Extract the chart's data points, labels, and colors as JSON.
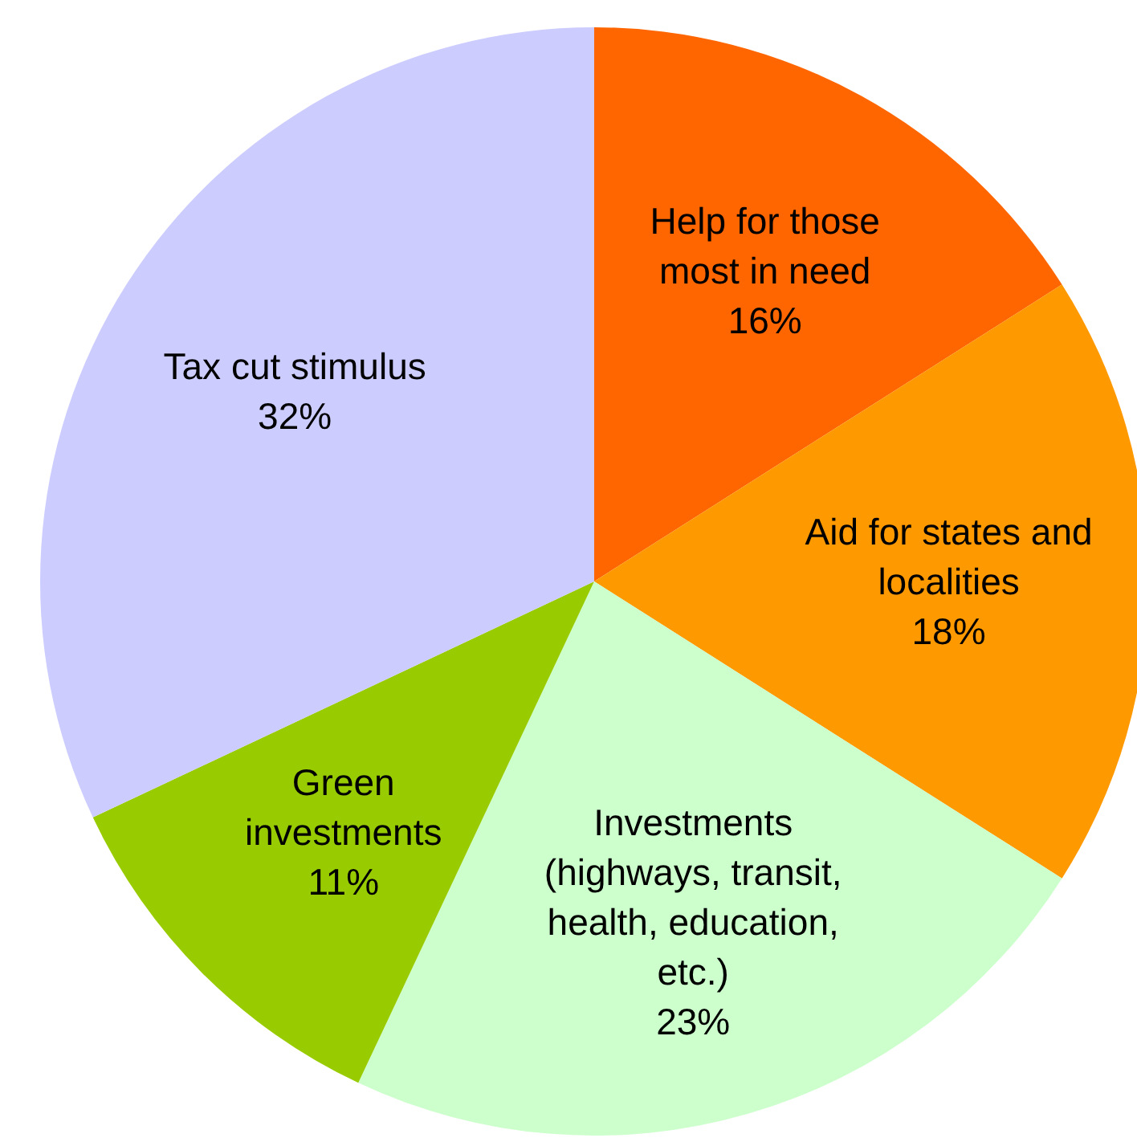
{
  "chart_data": {
    "type": "pie",
    "categories": [
      "Help for those most in need",
      "Aid for states and localities",
      "Investments (highways, transit, health, education, etc.)",
      "Green investments",
      "Tax cut stimulus"
    ],
    "values": [
      16,
      18,
      23,
      11,
      32
    ],
    "value_labels": [
      "16%",
      "18%",
      "23%",
      "11%",
      "32%"
    ],
    "colors": [
      "#ff6600",
      "#ff9900",
      "#ccffcc",
      "#99cc00",
      "#ccccff"
    ],
    "legend": false
  }
}
